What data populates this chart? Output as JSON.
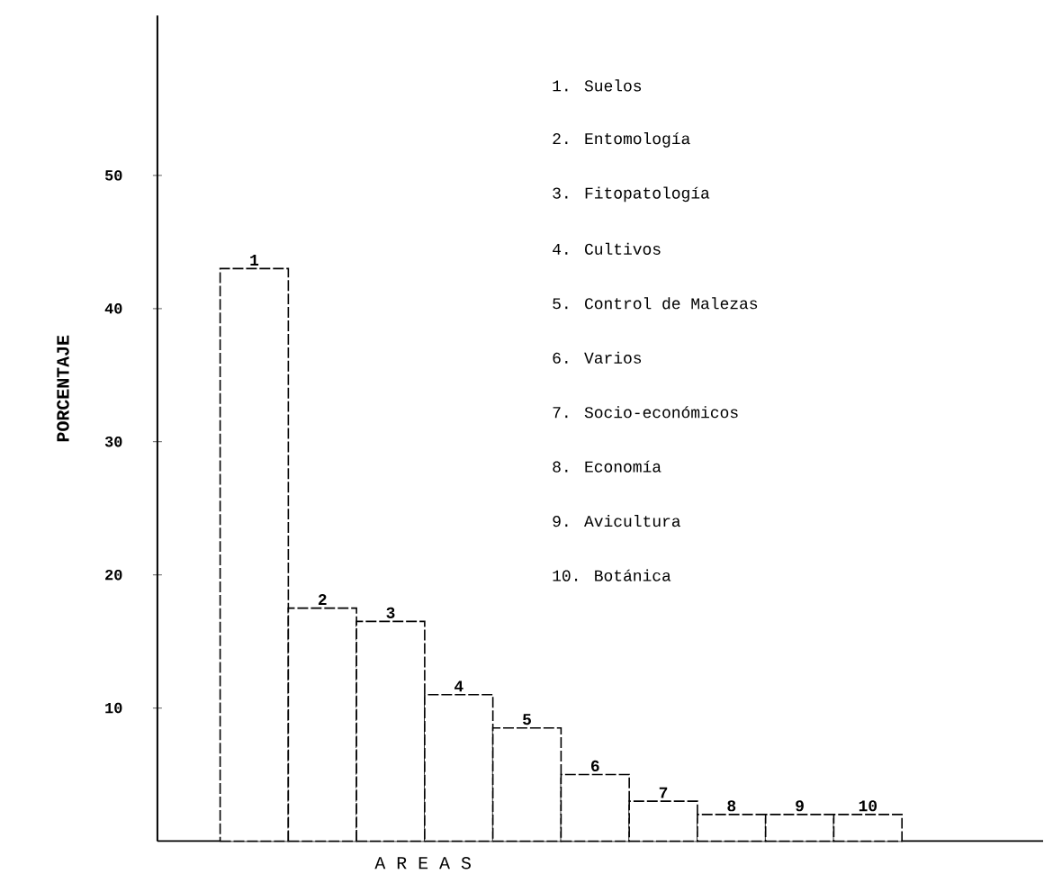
{
  "chart_data": {
    "type": "bar",
    "xlabel": "A R E A S",
    "ylabel": "PORCENTAJE",
    "categories": [
      "1",
      "2",
      "3",
      "4",
      "5",
      "6",
      "7",
      "8",
      "9",
      "10"
    ],
    "values": [
      43,
      17.5,
      16.5,
      11,
      8.5,
      5,
      3,
      2,
      2,
      2
    ],
    "color": "#000000",
    "ylim": [
      0,
      62
    ],
    "yticks": [
      10,
      20,
      30,
      40,
      50
    ],
    "annotations": [
      "1. Suelos",
      "2. Entomología",
      "3. Fitopatología",
      "4. Cultivos",
      "5. Control de Malezas",
      "6. Varios",
      "7. Socio-económicos",
      "8. Economía",
      "9. Avicultura",
      "10. Botánica"
    ],
    "grid": false
  }
}
